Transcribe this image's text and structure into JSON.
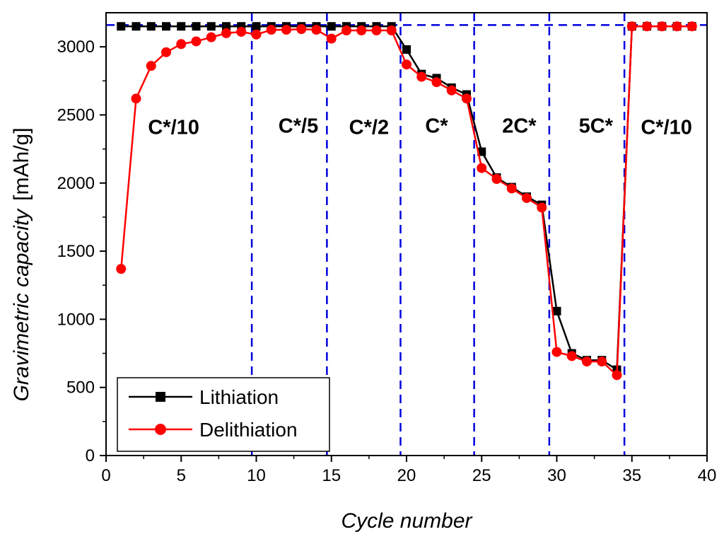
{
  "chart_data": {
    "type": "line",
    "title": "",
    "xlabel": "Cycle number",
    "ylabel_italic": "Gravimetric capacity",
    "ylabel_unit": "[mAh/g]",
    "xlim": [
      0,
      40
    ],
    "ylim": [
      0,
      3250
    ],
    "xticks": [
      0,
      5,
      10,
      15,
      20,
      25,
      30,
      35,
      40
    ],
    "yticks": [
      0,
      500,
      1000,
      1500,
      2000,
      2500,
      3000
    ],
    "reference_line_y": 3160,
    "rate_boundaries_x": [
      9.7,
      14.7,
      19.6,
      24.5,
      29.5,
      34.5
    ],
    "rate_labels": [
      {
        "text": "C*/10",
        "x": 4.5,
        "y": 2360
      },
      {
        "text": "C*/5",
        "x": 12.8,
        "y": 2370
      },
      {
        "text": "C*/2",
        "x": 17.5,
        "y": 2360
      },
      {
        "text": "C*",
        "x": 22.0,
        "y": 2370
      },
      {
        "text": "2C*",
        "x": 27.5,
        "y": 2370
      },
      {
        "text": "5C*",
        "x": 32.6,
        "y": 2370
      },
      {
        "text": "C*/10",
        "x": 37.3,
        "y": 2360
      }
    ],
    "legend": {
      "position": "bottom-left",
      "entries": [
        "Lithiation",
        "Delithiation"
      ]
    },
    "series": [
      {
        "name": "Lithiation",
        "color": "#000000",
        "marker": "square",
        "x": [
          1,
          2,
          3,
          4,
          5,
          6,
          7,
          8,
          9,
          10,
          11,
          12,
          13,
          14,
          15,
          16,
          17,
          18,
          19,
          20,
          21,
          22,
          23,
          24,
          25,
          26,
          27,
          28,
          29,
          30,
          31,
          32,
          33,
          34,
          35,
          36,
          37,
          38,
          39
        ],
        "y": [
          3150,
          3150,
          3150,
          3150,
          3150,
          3150,
          3150,
          3150,
          3150,
          3150,
          3150,
          3150,
          3150,
          3150,
          3150,
          3150,
          3150,
          3150,
          3150,
          2980,
          2800,
          2770,
          2700,
          2650,
          2230,
          2040,
          1970,
          1900,
          1840,
          1060,
          750,
          700,
          700,
          630,
          3150,
          3150,
          3150,
          3150,
          3150
        ]
      },
      {
        "name": "Delithiation",
        "color": "#ff0000",
        "marker": "circle",
        "x": [
          1,
          2,
          3,
          4,
          5,
          6,
          7,
          8,
          9,
          10,
          11,
          12,
          13,
          14,
          15,
          16,
          17,
          18,
          19,
          20,
          21,
          22,
          23,
          24,
          25,
          26,
          27,
          28,
          29,
          30,
          31,
          32,
          33,
          34,
          35,
          36,
          37,
          38,
          39
        ],
        "y": [
          1370,
          2620,
          2860,
          2960,
          3020,
          3040,
          3070,
          3100,
          3110,
          3090,
          3125,
          3125,
          3130,
          3125,
          3060,
          3120,
          3120,
          3120,
          3120,
          2870,
          2780,
          2740,
          2680,
          2620,
          2110,
          2030,
          1960,
          1890,
          1820,
          760,
          730,
          690,
          690,
          590,
          3150,
          3150,
          3150,
          3150,
          3150
        ]
      }
    ]
  }
}
